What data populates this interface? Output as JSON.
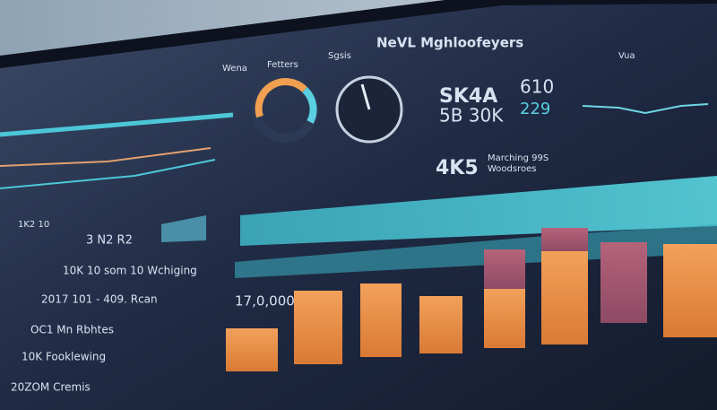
{
  "header": {
    "title": "NeVL Mghloofeyers",
    "nav": [
      "Wena",
      "Fetters",
      "Sgsis"
    ]
  },
  "kpis": [
    {
      "value": "SK4A",
      "sub": "5B 30K"
    },
    {
      "value": "610",
      "sub": "229"
    }
  ],
  "center_stat": {
    "value": "4K5",
    "label": "Marching 99S",
    "sublabel": "Woodsroes"
  },
  "left_list": [
    "10K 10 som 10 Wchiging",
    "2017 101 - 409. Rcan",
    "OC1 Mn Rbhtes",
    "10K Fooklewing",
    "20ZOM Cremis"
  ],
  "left_header": "1K2 10",
  "left_tag": "3 N2 R2",
  "chart_label": "17,0,000",
  "side_label": "Vua"
}
